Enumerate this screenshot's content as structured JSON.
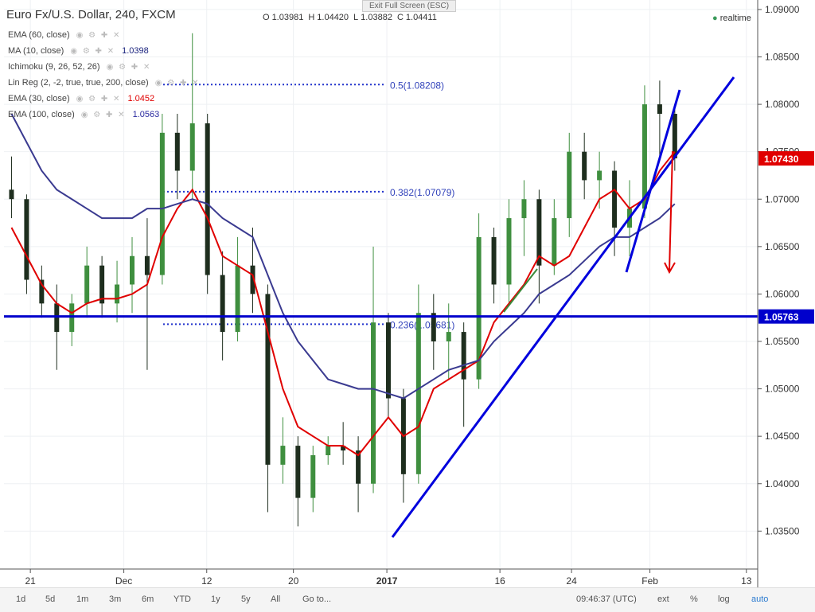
{
  "header": {
    "title": "Euro Fx/U.S. Dollar, 240, FXCM",
    "ohlc": [
      {
        "key": "O",
        "value": "1.03981"
      },
      {
        "key": "H",
        "value": "1.04420"
      },
      {
        "key": "L",
        "value": "1.03882"
      },
      {
        "key": "C",
        "value": "1.04411"
      }
    ],
    "exit_fullscreen": "Exit Full Screen (ESC)",
    "status": "realtime"
  },
  "indicators": [
    {
      "name": "EMA (60, close)"
    },
    {
      "name": "MA (10, close)",
      "value": "1.0398",
      "color": "#1a237e"
    },
    {
      "name": "Ichimoku (9, 26, 52, 26)"
    },
    {
      "name": "Lin Reg (2, -2, true, true, 200, close)"
    },
    {
      "name": "EMA (30, close)",
      "value": "1.0452",
      "color": "#e00000"
    },
    {
      "name": "EMA (100, close)",
      "value": "1.0563",
      "color": "#2a2aa0"
    }
  ],
  "toolbar": {
    "ranges": [
      "1d",
      "5d",
      "1m",
      "3m",
      "6m",
      "YTD",
      "1y",
      "5y",
      "All",
      "Go to..."
    ],
    "time": "09:46:37 (UTC)",
    "options": [
      "ext",
      "%",
      "log",
      "auto"
    ]
  },
  "chart_data": {
    "type": "candlestick",
    "xlim": [
      0,
      100
    ],
    "ylim": [
      1.031,
      1.091
    ],
    "xticks": [
      {
        "value": 3.5,
        "label": "21"
      },
      {
        "value": 15.9,
        "label": "Dec"
      },
      {
        "value": 26.9,
        "label": "12"
      },
      {
        "value": 38.4,
        "label": "20"
      },
      {
        "value": 50.8,
        "label": "2017"
      },
      {
        "value": 65.8,
        "label": "16"
      },
      {
        "value": 75.3,
        "label": "24"
      },
      {
        "value": 85.7,
        "label": "Feb"
      },
      {
        "value": 98.5,
        "label": "13"
      }
    ],
    "yticks": [
      {
        "value": 1.09,
        "label": "1.09000"
      },
      {
        "value": 1.085,
        "label": "1.08500"
      },
      {
        "value": 1.08,
        "label": "1.08000"
      },
      {
        "value": 1.075,
        "label": "1.07500"
      },
      {
        "value": 1.07,
        "label": "1.07000"
      },
      {
        "value": 1.065,
        "label": "1.06500"
      },
      {
        "value": 1.06,
        "label": "1.06000"
      },
      {
        "value": 1.055,
        "label": "1.05500"
      },
      {
        "value": 1.05,
        "label": "1.05000"
      },
      {
        "value": 1.045,
        "label": "1.04500"
      },
      {
        "value": 1.04,
        "label": "1.04000"
      },
      {
        "value": 1.035,
        "label": "1.03500"
      }
    ],
    "x": [
      1,
      3,
      5,
      7,
      9,
      11,
      13,
      15,
      17,
      19,
      21,
      23,
      25,
      27,
      29,
      31,
      33,
      35,
      37,
      39,
      41,
      43,
      45,
      47,
      49,
      51,
      53,
      55,
      57,
      59,
      61,
      63,
      65,
      67,
      69,
      71,
      73,
      75,
      77,
      79,
      81,
      83,
      85,
      87,
      89
    ],
    "open": [
      1.071,
      1.07,
      1.0615,
      1.059,
      1.056,
      1.059,
      1.063,
      1.059,
      1.061,
      1.064,
      1.062,
      1.077,
      1.073,
      1.078,
      1.062,
      1.056,
      1.063,
      1.06,
      1.042,
      1.044,
      1.0385,
      1.043,
      1.044,
      1.0435,
      1.04,
      1.057,
      1.049,
      1.041,
      1.058,
      1.055,
      1.056,
      1.051,
      1.066,
      1.061,
      1.068,
      1.07,
      1.063,
      1.068,
      1.075,
      1.072,
      1.073,
      1.067,
      1.069,
      1.08,
      1.079
    ],
    "high": [
      1.0745,
      1.0705,
      1.063,
      1.061,
      1.06,
      1.065,
      1.064,
      1.0635,
      1.066,
      1.068,
      1.079,
      1.079,
      1.0875,
      1.079,
      1.0645,
      1.066,
      1.067,
      1.061,
      1.047,
      1.045,
      1.044,
      1.045,
      1.0465,
      1.045,
      1.065,
      1.058,
      1.05,
      1.061,
      1.06,
      1.059,
      1.057,
      1.0685,
      1.067,
      1.07,
      1.072,
      1.071,
      1.07,
      1.077,
      1.077,
      1.075,
      1.074,
      1.072,
      1.082,
      1.0825,
      1.08
    ],
    "low": [
      1.068,
      1.06,
      1.0575,
      1.052,
      1.0545,
      1.0575,
      1.0575,
      1.057,
      1.058,
      1.052,
      1.061,
      1.07,
      1.07,
      1.06,
      1.053,
      1.055,
      1.058,
      1.037,
      1.04,
      1.0355,
      1.037,
      1.042,
      1.042,
      1.037,
      1.039,
      1.047,
      1.038,
      1.04,
      1.052,
      1.051,
      1.046,
      1.05,
      1.059,
      1.059,
      1.064,
      1.059,
      1.062,
      1.066,
      1.07,
      1.069,
      1.064,
      1.064,
      1.068,
      1.074,
      1.073
    ],
    "close": [
      1.07,
      1.0615,
      1.059,
      1.056,
      1.059,
      1.063,
      1.059,
      1.061,
      1.064,
      1.062,
      1.077,
      1.073,
      1.078,
      1.062,
      1.056,
      1.063,
      1.06,
      1.042,
      1.044,
      1.0385,
      1.043,
      1.044,
      1.0435,
      1.04,
      1.057,
      1.049,
      1.041,
      1.058,
      1.055,
      1.056,
      1.051,
      1.066,
      1.061,
      1.068,
      1.07,
      1.063,
      1.068,
      1.075,
      1.072,
      1.073,
      1.067,
      1.069,
      1.08,
      1.079,
      1.0743
    ],
    "up_color": "#3f8f3f",
    "down_color": "#1e2e1e",
    "series": [
      {
        "name": "EMA (30, close)",
        "color": "#e00000",
        "values": [
          1.067,
          1.064,
          1.061,
          1.059,
          1.058,
          1.059,
          1.0595,
          1.0595,
          1.06,
          1.061,
          1.066,
          1.069,
          1.071,
          1.068,
          1.064,
          1.063,
          1.062,
          1.056,
          1.05,
          1.046,
          1.045,
          1.044,
          1.044,
          1.043,
          1.045,
          1.047,
          1.045,
          1.046,
          1.05,
          1.051,
          1.052,
          1.053,
          1.057,
          1.059,
          1.061,
          1.064,
          1.063,
          1.064,
          1.067,
          1.07,
          1.071,
          1.069,
          1.07,
          1.073,
          1.075
        ]
      },
      {
        "name": "EMA (100, close)",
        "color": "#3a3a90",
        "values": [
          1.079,
          1.076,
          1.073,
          1.071,
          1.07,
          1.069,
          1.068,
          1.068,
          1.068,
          1.069,
          1.069,
          1.0695,
          1.07,
          1.0695,
          1.068,
          1.067,
          1.066,
          1.062,
          1.058,
          1.055,
          1.053,
          1.051,
          1.0505,
          1.05,
          1.05,
          1.0495,
          1.049,
          1.05,
          1.051,
          1.052,
          1.0525,
          1.053,
          1.055,
          1.0565,
          1.058,
          1.06,
          1.061,
          1.062,
          1.0635,
          1.065,
          1.066,
          1.066,
          1.067,
          1.068,
          1.0695
        ]
      }
    ],
    "fib_levels": [
      {
        "value": 1.08208,
        "label": "0.5(1.08208)"
      },
      {
        "value": 1.07079,
        "label": "0.382(1.07079)"
      },
      {
        "value": 1.05681,
        "label": "0.236(1.05681)"
      }
    ],
    "hline": {
      "value": 1.05763,
      "label": "1.05763",
      "color": "#0000cc"
    },
    "last_price": {
      "value": 1.0743,
      "label": "1.07430",
      "color": "#e00000"
    }
  }
}
